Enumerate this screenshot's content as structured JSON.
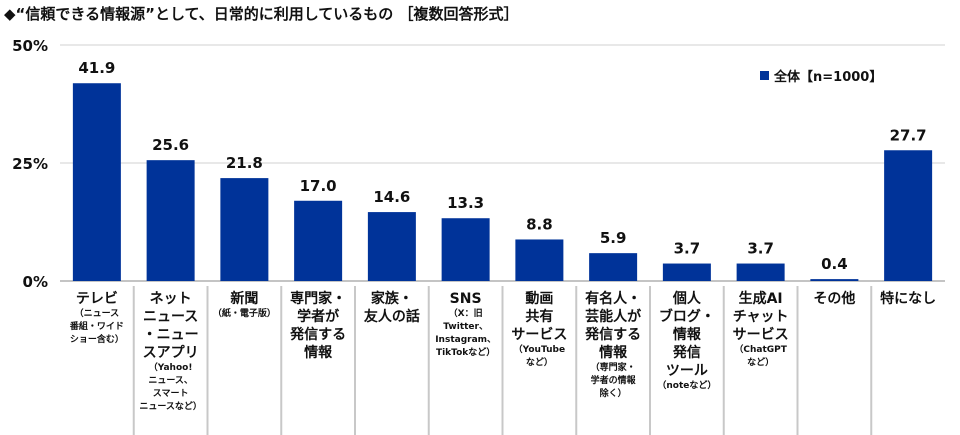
{
  "chart_data": {
    "type": "bar",
    "title": "◆“信頼できる情報源”として、日常的に利用しているもの ［複数回答形式］",
    "ylim": [
      0,
      50
    ],
    "yticks": [
      0,
      25,
      50
    ],
    "ytick_labels": [
      "0%",
      "25%",
      "50%"
    ],
    "grid": true,
    "legend": {
      "position": "top-right",
      "entries": [
        "全体【n=1000】"
      ]
    },
    "series": [
      {
        "name": "全体【n=1000】",
        "color": "#003399",
        "values": [
          41.9,
          25.6,
          21.8,
          17.0,
          14.6,
          13.3,
          8.8,
          5.9,
          3.7,
          3.7,
          0.4,
          27.7
        ]
      }
    ],
    "value_labels": [
      "41.9",
      "25.6",
      "21.8",
      "17.0",
      "14.6",
      "13.3",
      "8.8",
      "5.9",
      "3.7",
      "3.7",
      "0.4",
      "27.7"
    ],
    "categories": [
      {
        "main": [
          "テレビ"
        ],
        "sub": [
          "（ニュース",
          "番組・ワイド",
          "ショー含む）"
        ]
      },
      {
        "main": [
          "ネット",
          "ニュース",
          "・ニュー",
          "スアプリ"
        ],
        "sub": [
          "（Yahoo!",
          "ニュース、",
          "スマート",
          "ニュースなど）"
        ]
      },
      {
        "main": [
          "新聞"
        ],
        "sub": [
          "（紙・電子版）"
        ]
      },
      {
        "main": [
          "専門家・",
          "学者が",
          "発信する",
          "情報"
        ],
        "sub": []
      },
      {
        "main": [
          "家族・",
          "友人の話"
        ],
        "sub": []
      },
      {
        "main": [
          "SNS"
        ],
        "sub": [
          "（X：旧",
          "Twitter、",
          "Instagram、",
          "TikTokなど）"
        ]
      },
      {
        "main": [
          "動画",
          "共有",
          "サービス"
        ],
        "sub": [
          "（YouTube",
          "など）"
        ]
      },
      {
        "main": [
          "有名人・",
          "芸能人が",
          "発信する",
          "情報"
        ],
        "sub": [
          "（専門家・",
          "学者の情報",
          "除く）"
        ]
      },
      {
        "main": [
          "個人",
          "ブログ・",
          "情報",
          "発信",
          "ツール"
        ],
        "sub": [
          "（noteなど）"
        ]
      },
      {
        "main": [
          "生成AI",
          "チャット",
          "サービス"
        ],
        "sub": [
          "（ChatGPT",
          "など）"
        ]
      },
      {
        "main": [
          "その他"
        ],
        "sub": []
      },
      {
        "main": [
          "特になし"
        ],
        "sub": []
      }
    ]
  }
}
